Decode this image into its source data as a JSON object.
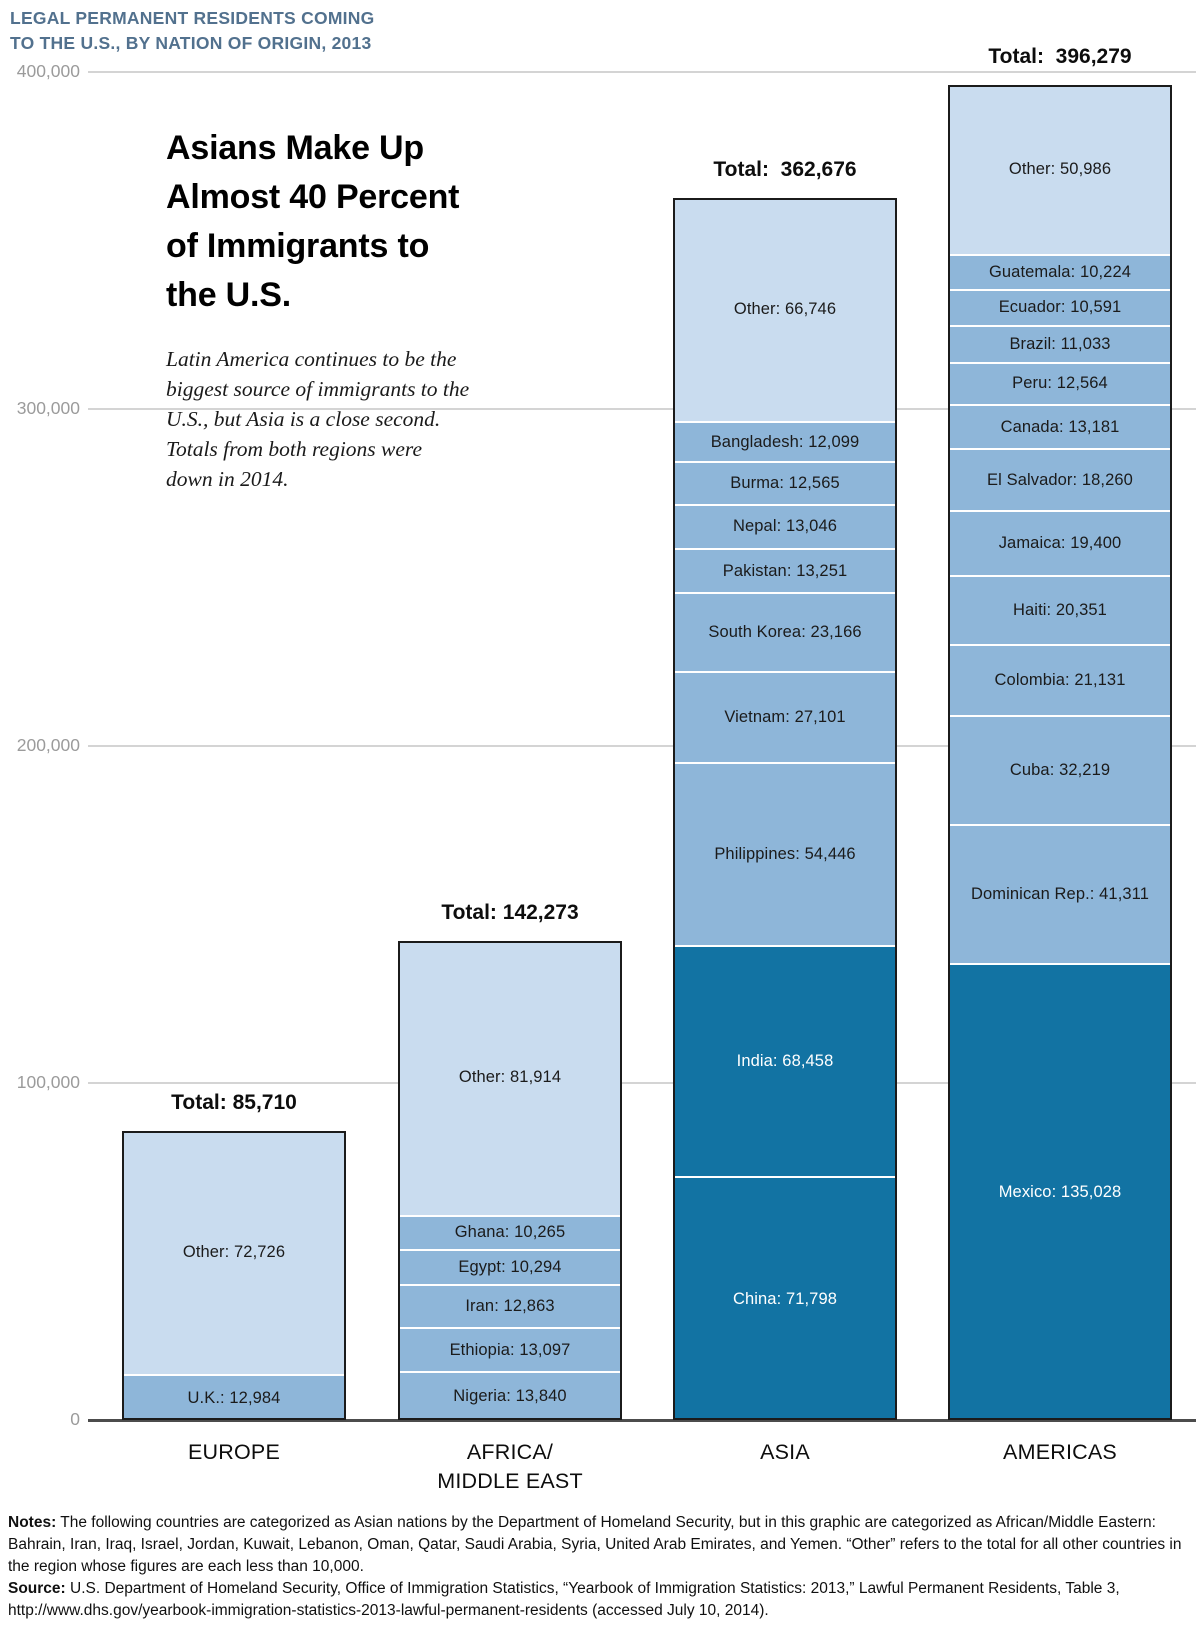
{
  "kicker_lines": [
    "LEGAL PERMANENT RESIDENTS COMING",
    "TO THE U.S., BY NATION OF ORIGIN, 2013"
  ],
  "headline_lines": [
    "Asians Make Up",
    "Almost 40 Percent",
    "of Immigrants to",
    "the U.S."
  ],
  "subtitle_lines": [
    "Latin America continues to be the",
    "biggest source of immigrants to the",
    "U.S., but Asia is a close second.",
    "Totals from both regions were",
    "down in 2014."
  ],
  "chart_data": {
    "type": "bar",
    "stacked": true,
    "title": "Legal permanent residents coming to the U.S., by nation of origin, 2013",
    "xlabel": "",
    "ylabel": "",
    "ylim": [
      0,
      400000
    ],
    "grid": true,
    "y_ticks": [
      {
        "value": 400000,
        "label": "400,000"
      },
      {
        "value": 300000,
        "label": "300,000"
      },
      {
        "value": 200000,
        "label": "200,000"
      },
      {
        "value": 100000,
        "label": "100,000"
      },
      {
        "value": 0,
        "label": "0"
      }
    ],
    "colors": {
      "light": "#c9dcef",
      "medium": "#8eb6d9",
      "dark": "#1273a3"
    },
    "categories": [
      "EUROPE",
      "AFRICA/MIDDLE EAST",
      "ASIA",
      "AMERICAS"
    ],
    "bars": [
      {
        "category": "EUROPE",
        "category_label": "EUROPE",
        "total": 85710,
        "total_label": "Total: 85,710",
        "segments": [
          {
            "name": "U.K.",
            "value": 12984,
            "label": "U.K.: 12,984",
            "tone": "medium"
          },
          {
            "name": "Other",
            "value": 72726,
            "label": "Other: 72,726",
            "tone": "light"
          }
        ]
      },
      {
        "category": "AFRICA/MIDDLE EAST",
        "category_label": "AFRICA/\nMIDDLE EAST",
        "total": 142273,
        "total_label": "Total: 142,273",
        "segments": [
          {
            "name": "Nigeria",
            "value": 13840,
            "label": "Nigeria: 13,840",
            "tone": "medium"
          },
          {
            "name": "Ethiopia",
            "value": 13097,
            "label": "Ethiopia: 13,097",
            "tone": "medium"
          },
          {
            "name": "Iran",
            "value": 12863,
            "label": "Iran: 12,863",
            "tone": "medium"
          },
          {
            "name": "Egypt",
            "value": 10294,
            "label": "Egypt: 10,294",
            "tone": "medium"
          },
          {
            "name": "Ghana",
            "value": 10265,
            "label": "Ghana: 10,265",
            "tone": "medium"
          },
          {
            "name": "Other",
            "value": 81914,
            "label": "Other: 81,914",
            "tone": "light"
          }
        ]
      },
      {
        "category": "ASIA",
        "category_label": "ASIA",
        "total": 362676,
        "total_label": "Total:  362,676",
        "segments": [
          {
            "name": "China",
            "value": 71798,
            "label": "China: 71,798",
            "tone": "dark"
          },
          {
            "name": "India",
            "value": 68458,
            "label": "India: 68,458",
            "tone": "dark"
          },
          {
            "name": "Philippines",
            "value": 54446,
            "label": "Philippines: 54,446",
            "tone": "medium"
          },
          {
            "name": "Vietnam",
            "value": 27101,
            "label": "Vietnam: 27,101",
            "tone": "medium"
          },
          {
            "name": "South Korea",
            "value": 23166,
            "label": "South Korea: 23,166",
            "tone": "medium"
          },
          {
            "name": "Pakistan",
            "value": 13251,
            "label": "Pakistan: 13,251",
            "tone": "medium"
          },
          {
            "name": "Nepal",
            "value": 13046,
            "label": "Nepal: 13,046",
            "tone": "medium"
          },
          {
            "name": "Burma",
            "value": 12565,
            "label": "Burma: 12,565",
            "tone": "medium"
          },
          {
            "name": "Bangladesh",
            "value": 12099,
            "label": "Bangladesh: 12,099",
            "tone": "medium"
          },
          {
            "name": "Other",
            "value": 66746,
            "label": "Other: 66,746",
            "tone": "light"
          }
        ]
      },
      {
        "category": "AMERICAS",
        "category_label": "AMERICAS",
        "total": 396279,
        "total_label": "Total:  396,279",
        "segments": [
          {
            "name": "Mexico",
            "value": 135028,
            "label": "Mexico: 135,028",
            "tone": "dark"
          },
          {
            "name": "Dominican Rep.",
            "value": 41311,
            "label": "Dominican Rep.: 41,311",
            "tone": "medium"
          },
          {
            "name": "Cuba",
            "value": 32219,
            "label": "Cuba: 32,219",
            "tone": "medium"
          },
          {
            "name": "Colombia",
            "value": 21131,
            "label": "Colombia: 21,131",
            "tone": "medium"
          },
          {
            "name": "Haiti",
            "value": 20351,
            "label": "Haiti: 20,351",
            "tone": "medium"
          },
          {
            "name": "Jamaica",
            "value": 19400,
            "label": "Jamaica: 19,400",
            "tone": "medium"
          },
          {
            "name": "El Salvador",
            "value": 18260,
            "label": "El Salvador: 18,260",
            "tone": "medium"
          },
          {
            "name": "Canada",
            "value": 13181,
            "label": "Canada: 13,181",
            "tone": "medium"
          },
          {
            "name": "Peru",
            "value": 12564,
            "label": "Peru: 12,564",
            "tone": "medium"
          },
          {
            "name": "Brazil",
            "value": 11033,
            "label": "Brazil: 11,033",
            "tone": "medium"
          },
          {
            "name": "Ecuador",
            "value": 10591,
            "label": "Ecuador: 10,591",
            "tone": "medium"
          },
          {
            "name": "Guatemala",
            "value": 10224,
            "label": "Guatemala: 10,224",
            "tone": "medium"
          },
          {
            "name": "Other",
            "value": 50986,
            "label": "Other: 50,986",
            "tone": "light"
          }
        ]
      }
    ]
  },
  "notes": {
    "notes_prefix": "Notes:",
    "notes_text": " The following countries are categorized as Asian nations by the Department of Homeland Security, but in this graphic are categorized as African/Middle Eastern: Bahrain, Iran, Iraq, Israel, Jordan, Kuwait, Lebanon, Oman, Qatar, Saudi Arabia, Syria, United Arab Emirates, and Yemen. “Other” refers to the total for all other countries in the region whose figures are each less than 10,000.",
    "source_prefix": "Source:",
    "source_text": " U.S. Department of Homeland Security, Office of Immigration Statistics, “Yearbook of Immigration Statistics: 2013,” Lawful Permanent Residents, Table 3, http://www.dhs.gov/yearbook-immigration-statistics-2013-lawful-permanent-residents (accessed July 10, 2014)."
  }
}
